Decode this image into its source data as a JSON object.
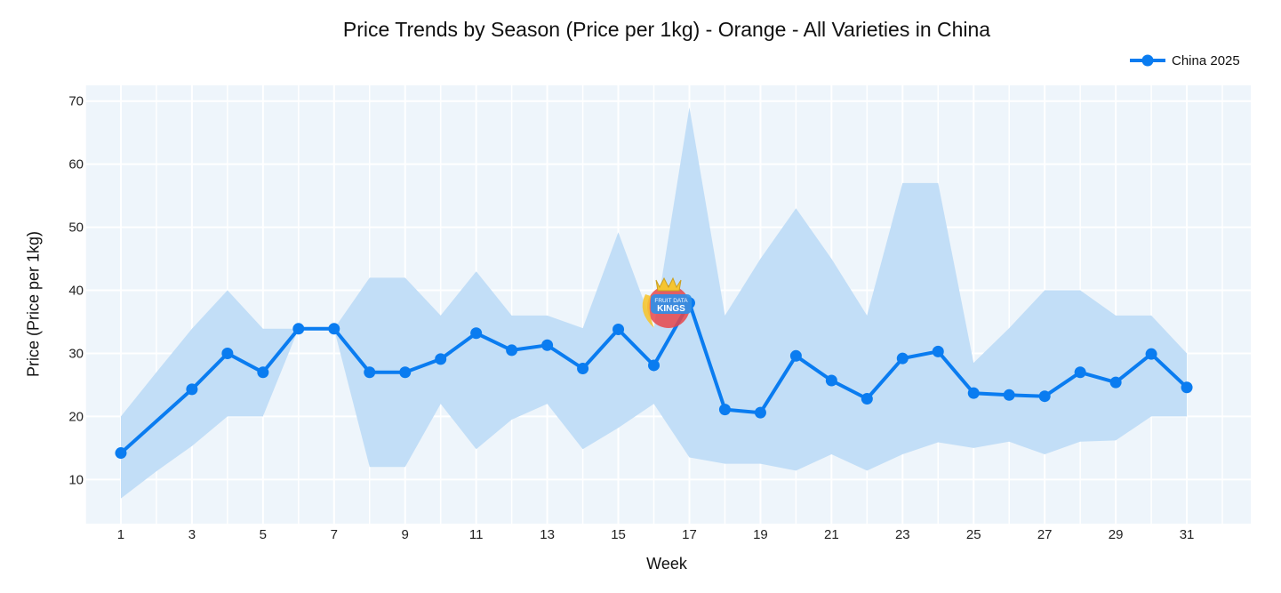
{
  "chart_data": {
    "type": "line",
    "title": "Price Trends by Season (Price per 1kg) - Orange - All Varieties in China",
    "xlabel": "Week",
    "ylabel": "Price (Price per 1kg)",
    "x": [
      1,
      2,
      3,
      4,
      5,
      6,
      7,
      8,
      9,
      10,
      11,
      12,
      13,
      14,
      15,
      16,
      17,
      18,
      19,
      20,
      21,
      22,
      23,
      24,
      25,
      26,
      27,
      28,
      29,
      30,
      31
    ],
    "x_ticks": [
      "1",
      "3",
      "5",
      "7",
      "9",
      "11",
      "13",
      "15",
      "17",
      "19",
      "21",
      "23",
      "25",
      "27",
      "29",
      "31"
    ],
    "y_ticks": [
      "10",
      "20",
      "30",
      "40",
      "50",
      "60",
      "70"
    ],
    "xlim": [
      -0.0,
      32.8
    ],
    "ylim": [
      3,
      72.5
    ],
    "grid": true,
    "legend_position": "top-right",
    "series": [
      {
        "name": "China 2025",
        "color": "#0a7cf0",
        "values": [
          14.2,
          null,
          24.3,
          30.0,
          27.0,
          33.9,
          33.9,
          27.0,
          27.0,
          29.1,
          33.2,
          30.5,
          31.3,
          27.6,
          33.8,
          28.1,
          38.0,
          21.1,
          20.6,
          29.6,
          25.7,
          22.8,
          29.2,
          30.3,
          23.7,
          23.4,
          23.2,
          27.0,
          25.4,
          29.9,
          24.6
        ]
      }
    ],
    "band": {
      "color": "#bfdcf7",
      "lower": [
        7.0,
        11.3,
        15.3,
        20.0,
        20.0,
        33.9,
        33.9,
        12.0,
        12.0,
        22.0,
        14.8,
        19.5,
        22.0,
        14.8,
        18.2,
        22.0,
        13.5,
        12.5,
        12.5,
        11.4,
        14.0,
        11.4,
        14.0,
        15.9,
        15.0,
        16.0,
        14.0,
        16.0,
        16.2,
        20.0,
        20.0
      ],
      "upper": [
        20.0,
        27.0,
        33.9,
        40.0,
        33.9,
        33.9,
        33.9,
        42.0,
        42.0,
        36.0,
        43.0,
        36.0,
        36.0,
        34.0,
        49.2,
        34.0,
        69.0,
        36.0,
        45.0,
        53.0,
        45.0,
        36.0,
        57.0,
        57.0,
        28.5,
        34.0,
        40.0,
        40.0,
        36.0,
        36.0,
        30.0
      ]
    },
    "watermark_text": "FRUIT DATA KINGS"
  }
}
